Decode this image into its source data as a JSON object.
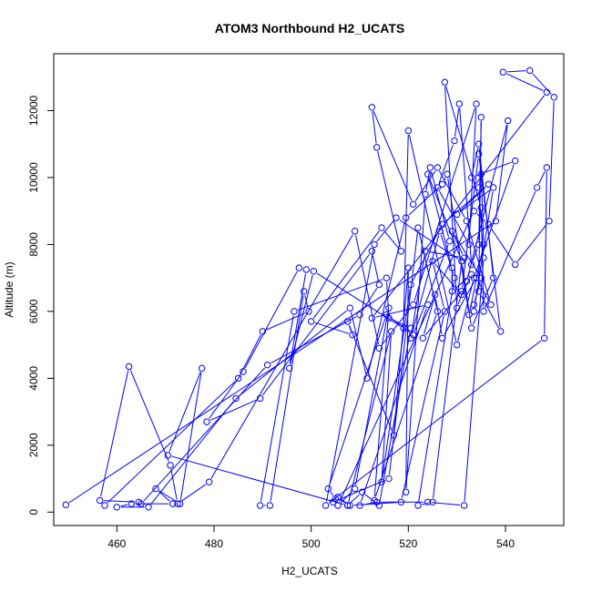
{
  "chart_data": {
    "type": "line",
    "title": "ATOM3 Northbound H2_UCATS",
    "xlabel": "H2_UCATS",
    "ylabel": "Altitude (m)",
    "xlim": [
      447,
      552
    ],
    "ylim": [
      -400,
      13700
    ],
    "xticks": [
      460,
      480,
      500,
      520,
      540
    ],
    "yticks": [
      0,
      2000,
      4000,
      6000,
      8000,
      10000,
      12000
    ],
    "grid": false,
    "legend": "none",
    "series_color": "#0000ff",
    "series": [
      {
        "points": [
          [
            449.5,
            220
          ],
          [
            538.0,
            8700
          ],
          [
            540.5,
            11700
          ],
          [
            532.0,
            6900
          ],
          [
            530.0,
            6100
          ],
          [
            527.5,
            12850
          ],
          [
            535.0,
            9100
          ],
          [
            535.5,
            6000
          ],
          [
            546.5,
            9700
          ],
          [
            548.5,
            10300
          ],
          [
            548.0,
            5200
          ],
          [
            503.0,
            200
          ],
          [
            513.0,
            8000
          ],
          [
            517.5,
            8800
          ],
          [
            531.0,
            7500
          ],
          [
            533.0,
            5500
          ],
          [
            537.5,
            7000
          ],
          [
            534.5,
            11000
          ],
          [
            533.0,
            10000
          ],
          [
            542.0,
            10500
          ],
          [
            533.5,
            7000
          ],
          [
            530.0,
            5000
          ],
          [
            520.0,
            11400
          ],
          [
            519.0,
            5500
          ],
          [
            500.5,
            7200
          ],
          [
            495.5,
            4300
          ],
          [
            499.0,
            7250
          ],
          [
            497.5,
            7300
          ],
          [
            486.0,
            4200
          ],
          [
            478.5,
            2700
          ],
          [
            489.5,
            3400
          ],
          [
            512.5,
            7800
          ],
          [
            514.0,
            6800
          ],
          [
            510.0,
            5900
          ],
          [
            491.0,
            4400
          ],
          [
            465.0,
            250
          ],
          [
            464.5,
            300
          ],
          [
            456.5,
            350
          ],
          [
            462.5,
            4350
          ],
          [
            471.0,
            1400
          ],
          [
            472.5,
            250
          ],
          [
            479.0,
            900
          ],
          [
            509.0,
            8400
          ],
          [
            514.0,
            4900
          ],
          [
            521.0,
            6200
          ],
          [
            534.0,
            12200
          ],
          [
            532.5,
            8000
          ],
          [
            526.0,
            9700
          ],
          [
            529.5,
            11100
          ],
          [
            530.5,
            12200
          ],
          [
            533.0,
            7400
          ],
          [
            534.5,
            8000
          ],
          [
            535.0,
            11800
          ],
          [
            534.5,
            6600
          ],
          [
            539.0,
            5400
          ],
          [
            534.5,
            10700
          ],
          [
            531.0,
            6600
          ],
          [
            523.0,
            5200
          ],
          [
            525.5,
            6500
          ],
          [
            527.0,
            5200
          ],
          [
            534.0,
            7000
          ],
          [
            537.0,
            6200
          ],
          [
            532.0,
            8700
          ],
          [
            526.0,
            10300
          ],
          [
            521.0,
            9200
          ],
          [
            512.5,
            12100
          ],
          [
            513.5,
            10900
          ],
          [
            518.5,
            7800
          ],
          [
            514.5,
            8500
          ],
          [
            500.0,
            5700
          ],
          [
            508.5,
            5300
          ],
          [
            507.5,
            5700
          ],
          [
            517.0,
            2300
          ],
          [
            520.0,
            7300
          ],
          [
            519.5,
            600
          ],
          [
            523.5,
            9500
          ],
          [
            524.5,
            10300
          ],
          [
            528.5,
            8100
          ],
          [
            521.0,
            5300
          ],
          [
            515.5,
            5900
          ],
          [
            503.5,
            700
          ],
          [
            505.0,
            400
          ],
          [
            504.5,
            300
          ],
          [
            516.0,
            1000
          ],
          [
            522.0,
            8500
          ],
          [
            526.0,
            6000
          ],
          [
            513.0,
            350
          ],
          [
            516.0,
            6100
          ],
          [
            509.0,
            700
          ],
          [
            505.5,
            200
          ],
          [
            533.5,
            9000
          ],
          [
            536.5,
            8600
          ],
          [
            542.0,
            7400
          ],
          [
            549.0,
            8700
          ],
          [
            550.0,
            12400
          ],
          [
            545.0,
            13200
          ],
          [
            539.5,
            13150
          ],
          [
            548.5,
            12550
          ],
          [
            512.5,
            5800
          ],
          [
            524.0,
            6200
          ],
          [
            510.0,
            200
          ],
          [
            513.5,
            300
          ],
          [
            524.0,
            300
          ],
          [
            531.5,
            200
          ],
          [
            535.5,
            7600
          ],
          [
            534.5,
            9700
          ],
          [
            535.0,
            10100
          ],
          [
            535.5,
            8000
          ],
          [
            532.5,
            5900
          ],
          [
            528.0,
            10100
          ],
          [
            527.0,
            9800
          ],
          [
            519.5,
            8800
          ],
          [
            511.5,
            4000
          ],
          [
            508.0,
            6100
          ],
          [
            484.5,
            3400
          ],
          [
            466.5,
            150
          ],
          [
            460.0,
            150
          ],
          [
            463.0,
            250
          ],
          [
            471.5,
            250
          ],
          [
            468.0,
            700
          ],
          [
            473.0,
            250
          ],
          [
            477.5,
            4300
          ],
          [
            470.5,
            1700
          ],
          [
            507.5,
            200
          ],
          [
            516.5,
            5400
          ],
          [
            514.5,
            900
          ],
          [
            520.5,
            6800
          ],
          [
            527.0,
            8600
          ],
          [
            536.5,
            9800
          ],
          [
            530.0,
            8900
          ],
          [
            537.5,
            9700
          ],
          [
            533.5,
            6000
          ],
          [
            533.5,
            6200
          ],
          [
            535.0,
            7000
          ],
          [
            529.0,
            8400
          ],
          [
            531.5,
            7600
          ],
          [
            523.5,
            7800
          ],
          [
            520.5,
            5200
          ],
          [
            526.5,
            8400
          ],
          [
            529.5,
            7000
          ],
          [
            522.0,
            200
          ],
          [
            525.0,
            300
          ],
          [
            531.0,
            7500
          ],
          [
            524.0,
            10100
          ],
          [
            529.0,
            7300
          ],
          [
            529.0,
            6600
          ],
          [
            533.0,
            7100
          ],
          [
            531.0,
            6500
          ],
          [
            525.0,
            7500
          ],
          [
            527.5,
            6000
          ],
          [
            518.5,
            300
          ],
          [
            508.0,
            200
          ],
          [
            505.5,
            450
          ],
          [
            507.5,
            200
          ],
          [
            510.5,
            600
          ],
          [
            514.0,
            200
          ],
          [
            520.5,
            5500
          ],
          [
            516.0,
            5800
          ],
          [
            515.5,
            7000
          ],
          [
            496.5,
            6000
          ],
          [
            489.5,
            200
          ],
          [
            491.5,
            200
          ],
          [
            498.5,
            6600
          ],
          [
            499.5,
            6000
          ],
          [
            490.0,
            5400
          ],
          [
            485.0,
            4000
          ],
          [
            457.5,
            200
          ]
        ]
      }
    ]
  }
}
